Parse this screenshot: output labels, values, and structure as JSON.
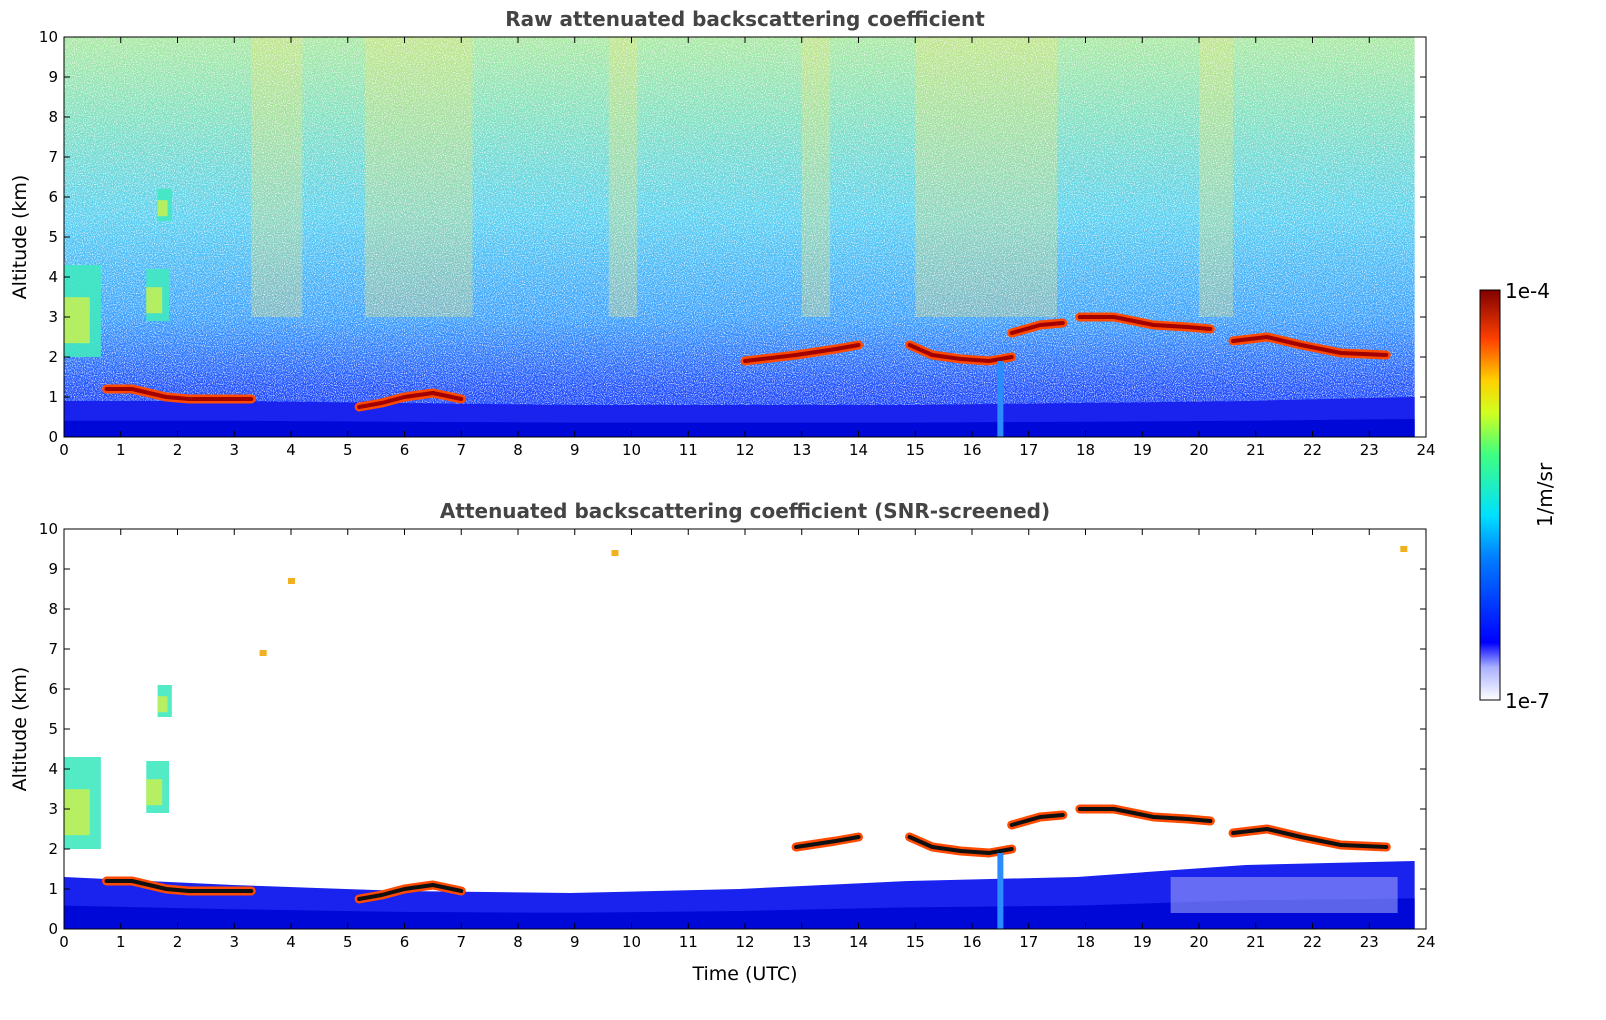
{
  "chart_data": [
    {
      "type": "heatmap",
      "title": "Raw attenuated backscattering coefficient",
      "xlabel": "",
      "ylabel": "Altitude (km)",
      "xlim": [
        0,
        24
      ],
      "ylim": [
        0,
        10
      ],
      "xticks": [
        0,
        1,
        2,
        3,
        4,
        5,
        6,
        7,
        8,
        9,
        10,
        11,
        12,
        13,
        14,
        15,
        16,
        17,
        18,
        19,
        20,
        21,
        22,
        23,
        24
      ],
      "yticks": [
        0,
        1,
        2,
        3,
        4,
        5,
        6,
        7,
        8,
        9,
        10
      ],
      "screened": false,
      "noise_level": "high",
      "features": [
        {
          "kind": "boundary_layer",
          "from_hour": 0,
          "to_hour": 23.8,
          "top_km": [
            0.9,
            0.9,
            0.85,
            0.8,
            0.8,
            0.8,
            0.85,
            0.9,
            1.0
          ]
        },
        {
          "kind": "aerosol_layer",
          "from_hour": 0,
          "to_hour": 0.65,
          "bottom_km": 2.0,
          "top_km": 4.3
        },
        {
          "kind": "aerosol_layer",
          "from_hour": 1.45,
          "to_hour": 1.85,
          "bottom_km": 2.9,
          "top_km": 4.2
        },
        {
          "kind": "aerosol_layer",
          "from_hour": 1.65,
          "to_hour": 1.9,
          "bottom_km": 5.4,
          "top_km": 6.2
        },
        {
          "kind": "cloud",
          "hours": [
            0.75,
            1.2,
            1.8,
            2.2,
            2.8,
            3.3
          ],
          "alt_km": [
            1.2,
            1.2,
            1.0,
            0.95,
            0.95,
            0.95
          ]
        },
        {
          "kind": "cloud",
          "hours": [
            5.2,
            5.6,
            6.0,
            6.5,
            7.0
          ],
          "alt_km": [
            0.75,
            0.85,
            1.0,
            1.1,
            0.95
          ]
        },
        {
          "kind": "cloud",
          "hours": [
            12.0,
            12.9,
            13.6,
            14.0
          ],
          "alt_km": [
            1.9,
            2.05,
            2.2,
            2.3
          ]
        },
        {
          "kind": "cloud",
          "hours": [
            14.9,
            15.3,
            15.8,
            16.3,
            16.7
          ],
          "alt_km": [
            2.3,
            2.05,
            1.95,
            1.9,
            2.0
          ]
        },
        {
          "kind": "cloud",
          "hours": [
            16.7,
            17.2,
            17.6
          ],
          "alt_km": [
            2.6,
            2.8,
            2.85
          ]
        },
        {
          "kind": "cloud",
          "hours": [
            17.9,
            18.5,
            19.2,
            19.8,
            20.2
          ],
          "alt_km": [
            3.0,
            3.0,
            2.8,
            2.75,
            2.7
          ]
        },
        {
          "kind": "cloud",
          "hours": [
            20.6,
            21.2,
            21.8,
            22.5,
            23.3
          ],
          "alt_km": [
            2.4,
            2.5,
            2.3,
            2.1,
            2.05
          ]
        },
        {
          "kind": "precip_streak",
          "hour": 16.5,
          "from_km": 0.0,
          "to_km": 1.9
        }
      ]
    },
    {
      "type": "heatmap",
      "title": "Attenuated backscattering coefficient (SNR-screened)",
      "xlabel": "Time (UTC)",
      "ylabel": "Altitude (km)",
      "xlim": [
        0,
        24
      ],
      "ylim": [
        0,
        10
      ],
      "xticks": [
        0,
        1,
        2,
        3,
        4,
        5,
        6,
        7,
        8,
        9,
        10,
        11,
        12,
        13,
        14,
        15,
        16,
        17,
        18,
        19,
        20,
        21,
        22,
        23,
        24
      ],
      "yticks": [
        0,
        1,
        2,
        3,
        4,
        5,
        6,
        7,
        8,
        9,
        10
      ],
      "screened": true,
      "noise_level": "none",
      "features": [
        {
          "kind": "boundary_layer",
          "from_hour": 0,
          "to_hour": 23.8,
          "top_km": [
            1.3,
            1.1,
            0.95,
            0.9,
            1.0,
            1.2,
            1.3,
            1.6,
            1.7
          ]
        },
        {
          "kind": "aerosol_layer",
          "from_hour": 0,
          "to_hour": 0.65,
          "bottom_km": 2.0,
          "top_km": 4.3
        },
        {
          "kind": "aerosol_layer",
          "from_hour": 1.45,
          "to_hour": 1.85,
          "bottom_km": 2.9,
          "top_km": 4.2
        },
        {
          "kind": "aerosol_layer",
          "from_hour": 1.65,
          "to_hour": 1.9,
          "bottom_km": 5.3,
          "top_km": 6.1
        },
        {
          "kind": "cloud",
          "hours": [
            0.75,
            1.2,
            1.8,
            2.2,
            2.8,
            3.3
          ],
          "alt_km": [
            1.2,
            1.2,
            1.0,
            0.95,
            0.95,
            0.95
          ]
        },
        {
          "kind": "cloud",
          "hours": [
            5.2,
            5.6,
            6.0,
            6.5,
            7.0
          ],
          "alt_km": [
            0.75,
            0.85,
            1.0,
            1.1,
            0.95
          ]
        },
        {
          "kind": "cloud",
          "hours": [
            12.9,
            13.6,
            14.0
          ],
          "alt_km": [
            2.05,
            2.2,
            2.3
          ]
        },
        {
          "kind": "cloud",
          "hours": [
            14.9,
            15.3,
            15.8,
            16.3,
            16.7
          ],
          "alt_km": [
            2.3,
            2.05,
            1.95,
            1.9,
            2.0
          ]
        },
        {
          "kind": "cloud",
          "hours": [
            16.7,
            17.2,
            17.6
          ],
          "alt_km": [
            2.6,
            2.8,
            2.85
          ]
        },
        {
          "kind": "cloud",
          "hours": [
            17.9,
            18.5,
            19.2,
            19.8,
            20.2
          ],
          "alt_km": [
            3.0,
            3.0,
            2.8,
            2.75,
            2.7
          ]
        },
        {
          "kind": "cloud",
          "hours": [
            20.6,
            21.2,
            21.8,
            22.5,
            23.3
          ],
          "alt_km": [
            2.4,
            2.5,
            2.3,
            2.1,
            2.05
          ]
        },
        {
          "kind": "speck",
          "hour": 9.7,
          "alt_km": 9.4
        },
        {
          "kind": "speck",
          "hour": 23.6,
          "alt_km": 9.5
        },
        {
          "kind": "speck",
          "hour": 4.0,
          "alt_km": 8.7
        },
        {
          "kind": "speck",
          "hour": 3.5,
          "alt_km": 6.9
        },
        {
          "kind": "precip_streak",
          "hour": 16.5,
          "from_km": 0.0,
          "to_km": 1.9
        }
      ]
    }
  ],
  "colorbar": {
    "max_label": "1e-4",
    "min_label": "1e-7",
    "unit_label": "1/m/sr",
    "colormap": "jet",
    "scale": "log"
  }
}
